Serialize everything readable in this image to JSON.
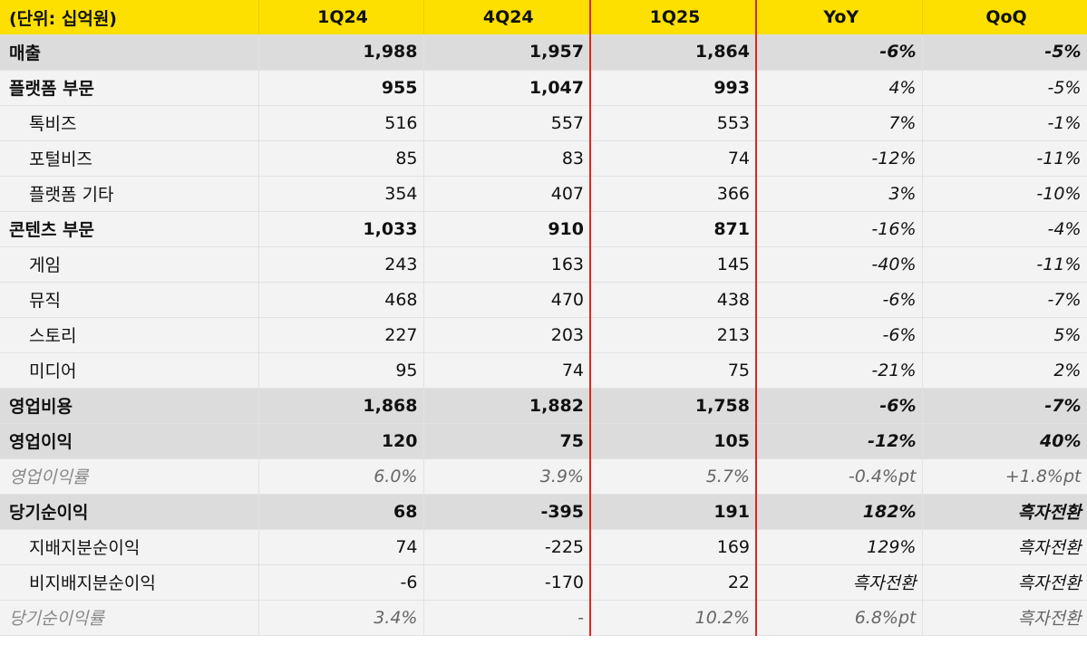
{
  "header": {
    "unit_label": "(단위: 십억원)",
    "columns": [
      "1Q24",
      "4Q24",
      "1Q25",
      "YoY",
      "QoQ"
    ]
  },
  "colors": {
    "header_bg": "#fde000",
    "divider": "#e0261a",
    "total_row_bg": "#dcdcdc"
  },
  "rows": [
    {
      "label": "매출",
      "q1_24": "1,988",
      "q4_24": "1,957",
      "q1_25": "1,864",
      "yoy": "-6%",
      "qoq": "-5%"
    },
    {
      "label": "플랫폼 부문",
      "q1_24": "955",
      "q4_24": "1,047",
      "q1_25": "993",
      "yoy": "4%",
      "qoq": "-5%"
    },
    {
      "label": "톡비즈",
      "q1_24": "516",
      "q4_24": "557",
      "q1_25": "553",
      "yoy": "7%",
      "qoq": "-1%"
    },
    {
      "label": "포털비즈",
      "q1_24": "85",
      "q4_24": "83",
      "q1_25": "74",
      "yoy": "-12%",
      "qoq": "-11%"
    },
    {
      "label": "플랫폼 기타",
      "q1_24": "354",
      "q4_24": "407",
      "q1_25": "366",
      "yoy": "3%",
      "qoq": "-10%"
    },
    {
      "label": "콘텐츠 부문",
      "q1_24": "1,033",
      "q4_24": "910",
      "q1_25": "871",
      "yoy": "-16%",
      "qoq": "-4%"
    },
    {
      "label": "게임",
      "q1_24": "243",
      "q4_24": "163",
      "q1_25": "145",
      "yoy": "-40%",
      "qoq": "-11%"
    },
    {
      "label": "뮤직",
      "q1_24": "468",
      "q4_24": "470",
      "q1_25": "438",
      "yoy": "-6%",
      "qoq": "-7%"
    },
    {
      "label": "스토리",
      "q1_24": "227",
      "q4_24": "203",
      "q1_25": "213",
      "yoy": "-6%",
      "qoq": "5%"
    },
    {
      "label": "미디어",
      "q1_24": "95",
      "q4_24": "74",
      "q1_25": "75",
      "yoy": "-21%",
      "qoq": "2%"
    },
    {
      "label": "영업비용",
      "q1_24": "1,868",
      "q4_24": "1,882",
      "q1_25": "1,758",
      "yoy": "-6%",
      "qoq": "-7%"
    },
    {
      "label": "영업이익",
      "q1_24": "120",
      "q4_24": "75",
      "q1_25": "105",
      "yoy": "-12%",
      "qoq": "40%"
    },
    {
      "label": "영업이익률",
      "q1_24": "6.0%",
      "q4_24": "3.9%",
      "q1_25": "5.7%",
      "yoy": "-0.4%pt",
      "qoq": "+1.8%pt"
    },
    {
      "label": "당기순이익",
      "q1_24": "68",
      "q4_24": "-395",
      "q1_25": "191",
      "yoy": "182%",
      "qoq": "흑자전환"
    },
    {
      "label": "지배지분순이익",
      "q1_24": "74",
      "q4_24": "-225",
      "q1_25": "169",
      "yoy": "129%",
      "qoq": "흑자전환"
    },
    {
      "label": "비지배지분순이익",
      "q1_24": "-6",
      "q4_24": "-170",
      "q1_25": "22",
      "yoy": "흑자전환",
      "qoq": "흑자전환"
    },
    {
      "label": "당기순이익률",
      "q1_24": "3.4%",
      "q4_24": "-",
      "q1_25": "10.2%",
      "yoy": "6.8%pt",
      "qoq": "흑자전환"
    }
  ]
}
